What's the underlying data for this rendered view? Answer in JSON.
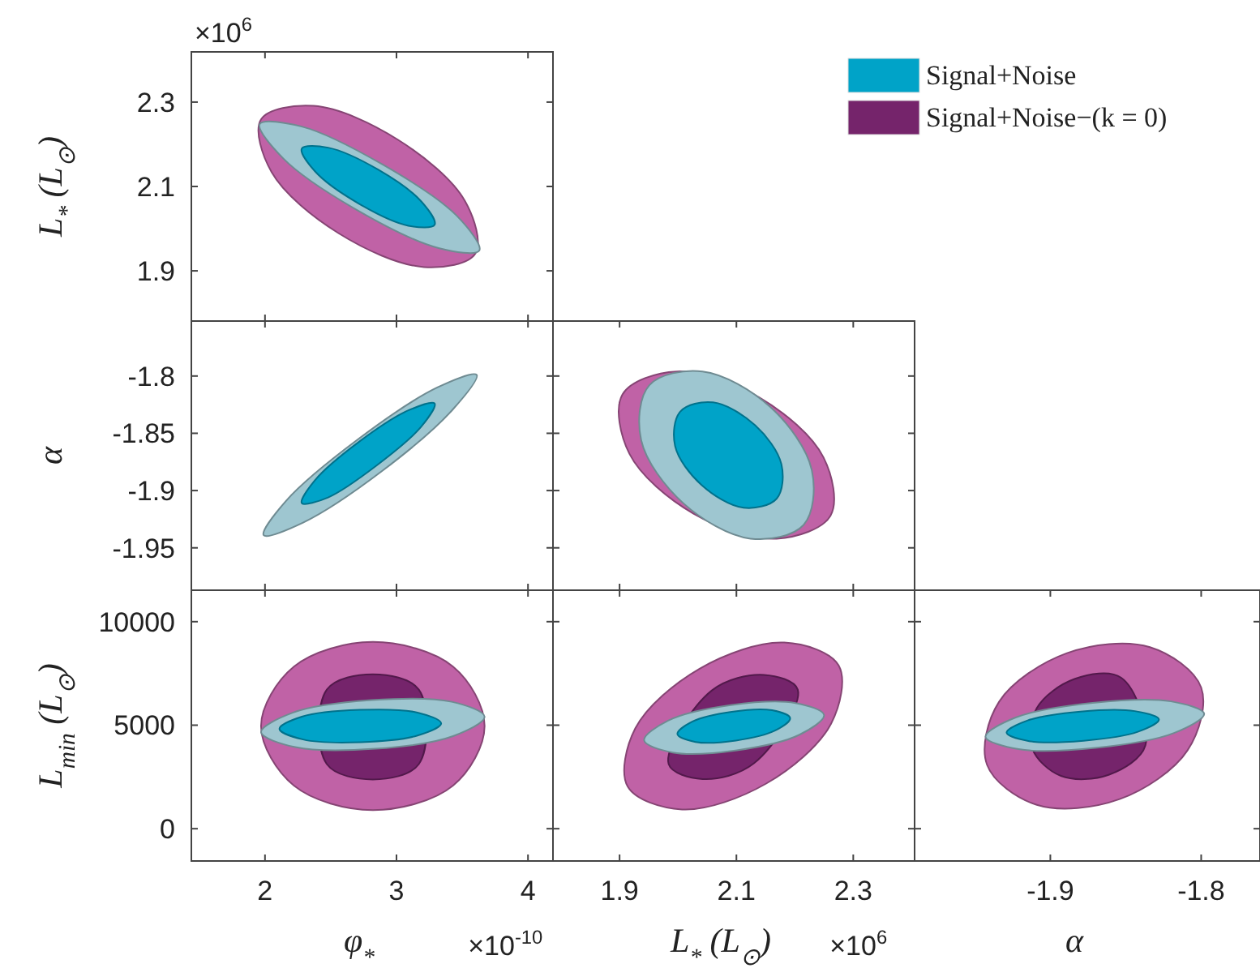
{
  "chart_data": [
    {
      "type": "area",
      "ylabel": "L$_{*}$ (L$_{⊙}$)",
      "annotations": [
        "×10$^{6}$"
      ],
      "xlim": [
        1.44,
        4.19
      ],
      "xticks": [
        2,
        3,
        4
      ],
      "ylim": [
        1.781,
        2.419
      ],
      "yticks": [
        1.9,
        2.1,
        2.3
      ],
      "tick_labels": "y",
      "series": [
        {
          "color": "#c062a6",
          "x": [
            3.6,
            3.21,
            2.56,
            2.05,
            1.97,
            2.37,
            3.01,
            3.52
          ],
          "values": [
            1.941,
            1.909,
            1.989,
            2.134,
            2.259,
            2.291,
            2.211,
            2.066
          ]
        },
        {
          "color": "#9ec6d0",
          "x": [
            3.63,
            3.32,
            2.7,
            2.14,
            1.96,
            2.28,
            2.9,
            3.46
          ],
          "values": [
            1.948,
            1.954,
            2.044,
            2.166,
            2.248,
            2.242,
            2.151,
            2.03
          ]
        },
        {
          "color": "#00a3c8",
          "x": [
            3.29,
            3.09,
            2.71,
            2.38,
            2.28,
            2.48,
            2.86,
            3.19
          ],
          "values": [
            2.009,
            2.007,
            2.06,
            2.136,
            2.19,
            2.192,
            2.14,
            2.064
          ]
        }
      ]
    },
    {
      "type": "area",
      "ylabel": "α",
      "xlim": [
        1.44,
        4.19
      ],
      "xticks": [
        2,
        3,
        4
      ],
      "ylim": [
        -1.987,
        -1.752
      ],
      "yticks": [
        -1.95,
        -1.9,
        -1.85,
        -1.8
      ],
      "tick_labels": "y",
      "series": [
        {
          "color": "#9ec6d0",
          "x": [
            3.61,
            3.43,
            2.89,
            2.29,
            1.99,
            2.16,
            2.71,
            3.31
          ],
          "values": [
            -1.799,
            -1.829,
            -1.883,
            -1.928,
            -1.939,
            -1.909,
            -1.855,
            -1.81
          ]
        },
        {
          "color": "#00a3c8",
          "x": [
            3.29,
            3.19,
            2.85,
            2.48,
            2.28,
            2.38,
            2.72,
            3.09
          ],
          "values": [
            -1.824,
            -1.844,
            -1.878,
            -1.906,
            -1.911,
            -1.891,
            -1.857,
            -1.83
          ]
        }
      ]
    },
    {
      "type": "area",
      "xlim": [
        1.786,
        2.405
      ],
      "xticks": [
        1.9,
        2.1,
        2.3
      ],
      "ylim": [
        -1.987,
        -1.752
      ],
      "yticks": [
        -1.95,
        -1.9,
        -1.85,
        -1.8
      ],
      "tick_labels": false,
      "series": [
        {
          "color": "#c062a6",
          "x": [
            2.261,
            2.169,
            2.026,
            1.917,
            1.905,
            1.998,
            2.14,
            2.249
          ],
          "values": [
            -1.922,
            -1.942,
            -1.92,
            -1.868,
            -1.816,
            -1.796,
            -1.819,
            -1.871
          ]
        },
        {
          "color": "#9ec6d0",
          "x": [
            2.215,
            2.124,
            2.009,
            1.937,
            1.951,
            2.042,
            2.158,
            2.229
          ],
          "values": [
            -1.93,
            -1.942,
            -1.911,
            -1.856,
            -1.808,
            -1.796,
            -1.827,
            -1.882
          ]
        },
        {
          "color": "#00a3c8",
          "x": [
            2.169,
            2.112,
            2.04,
            1.995,
            2.004,
            2.06,
            2.132,
            2.177
          ],
          "values": [
            -1.907,
            -1.915,
            -1.895,
            -1.861,
            -1.831,
            -1.823,
            -1.843,
            -1.877
          ]
        }
      ]
    },
    {
      "type": "area",
      "xlabel": "φ$_{*}$",
      "ylabel": "L$_{min}$ (L$_{⊙}$)",
      "annotations": [
        "×10$^{-10}$"
      ],
      "legend": "top right",
      "xlim": [
        1.44,
        4.19
      ],
      "xticks": [
        2,
        3,
        4
      ],
      "ylim": [
        -1560,
        11520
      ],
      "yticks": [
        0,
        5000,
        10000
      ],
      "series": [
        {
          "color": "#c062a6",
          "x": [
            3.67,
            3.43,
            2.82,
            2.22,
            1.97,
            2.22,
            2.82,
            3.43
          ],
          "values": [
            4960,
            2080,
            900,
            2080,
            4960,
            7830,
            9020,
            7830
          ]
        },
        {
          "name": "Signal+Noise−(k = 0)",
          "color": "#75246b",
          "x": [
            null,
            3.17,
            2.82,
            2.47,
            null,
            2.47,
            2.82,
            3.17
          ],
          "values": [
            null,
            3120,
            2380,
            3120,
            null,
            6720,
            7460,
            6720
          ]
        },
        {
          "color": "#9ec6d0",
          "x": [
            3.67,
            3.43,
            2.84,
            2.23,
            1.97,
            2.21,
            2.81,
            3.42
          ],
          "values": [
            5410,
            4470,
            3860,
            3940,
            4660,
            5600,
            6210,
            6130
          ]
        },
        {
          "name": "Signal+Noise",
          "color": "#00a3c8",
          "x": [
            3.34,
            3.16,
            2.73,
            2.29,
            2.11,
            2.28,
            2.72,
            3.16
          ],
          "values": [
            5090,
            4500,
            4180,
            4310,
            4820,
            5410,
            5740,
            5610
          ]
        }
      ]
    },
    {
      "type": "area",
      "xlabel": "L$_{*}$ (L$_{⊙}$)",
      "annotations": [
        "×10$^{6}$"
      ],
      "xlim": [
        1.786,
        2.405
      ],
      "xticks": [
        1.9,
        2.1,
        2.3
      ],
      "ylim": [
        -1560,
        11520
      ],
      "yticks": [
        0,
        5000,
        10000
      ],
      "tick_labels": "x",
      "series": [
        {
          "color": "#c062a6",
          "x": [
            2.275,
            2.262,
            2.151,
            2.007,
            1.914,
            1.927,
            2.037,
            2.182
          ],
          "values": [
            7890,
            5070,
            2180,
            930,
            2030,
            4850,
            7730,
            8990
          ]
        },
        {
          "color": "#75246b",
          "x": [
            2.205,
            null,
            2.13,
            2.042,
            1.984,
            null,
            2.058,
            2.147
          ],
          "values": [
            6720,
            null,
            3160,
            2400,
            3120,
            null,
            6680,
            7430
          ]
        },
        {
          "color": "#9ec6d0",
          "x": [
            2.25,
            2.208,
            2.101,
            1.991,
            1.942,
            1.983,
            2.09,
            2.201
          ],
          "values": [
            5490,
            4540,
            3790,
            3680,
            4270,
            5220,
            5970,
            6070
          ]
        },
        {
          "color": "#00a3c8",
          "x": [
            2.192,
            2.166,
            2.099,
            2.03,
            1.999,
            2.025,
            2.092,
            2.161
          ],
          "values": [
            5340,
            4740,
            4260,
            4190,
            4570,
            5180,
            5650,
            5720
          ]
        }
      ]
    },
    {
      "type": "area",
      "xlabel": "α",
      "xlim": [
        -1.99,
        -1.761
      ],
      "xticks": [
        -1.9,
        -1.8
      ],
      "ylim": [
        -1560,
        11520
      ],
      "yticks": [
        0,
        5000,
        10000
      ],
      "tick_labels": "x",
      "series": [
        {
          "color": "#c062a6",
          "x": [
            -1.8,
            -1.809,
            -1.854,
            -1.909,
            -1.942,
            -1.934,
            -1.889,
            -1.834
          ],
          "values": [
            6820,
            3790,
            1430,
            1150,
            3090,
            6130,
            8480,
            8770
          ]
        },
        {
          "color": "#75246b",
          "x": [
            null,
            -1.837,
            -1.861,
            -1.893,
            -1.912,
            -1.909,
            -1.884,
            -1.853
          ],
          "values": [
            null,
            4020,
            2610,
            2550,
            3880,
            5820,
            7230,
            7290
          ]
        },
        {
          "color": "#9ec6d0",
          "x": [
            -1.798,
            -1.818,
            -1.869,
            -1.921,
            -1.943,
            -1.923,
            -1.872,
            -1.82
          ],
          "values": [
            5550,
            4620,
            3910,
            3840,
            4440,
            5370,
            6080,
            6150
          ]
        },
        {
          "color": "#00a3c8",
          "x": [
            -1.828,
            -1.842,
            -1.878,
            -1.914,
            -1.929,
            -1.915,
            -1.88,
            -1.844
          ],
          "values": [
            5280,
            4680,
            4250,
            4230,
            4640,
            5230,
            5660,
            5680
          ]
        }
      ]
    }
  ]
}
